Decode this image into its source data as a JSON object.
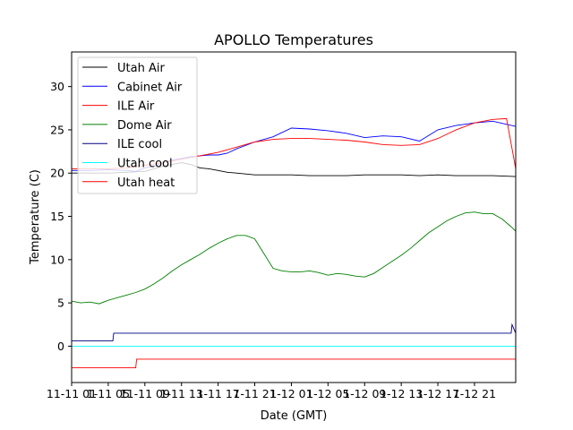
{
  "chart_data": {
    "type": "line",
    "title": "APOLLO Temperatures",
    "xlabel": "Date (GMT)",
    "ylabel": "Temperature (C)",
    "ylim": [
      -4.2,
      34
    ],
    "xlim": [
      0,
      48.5
    ],
    "y_ticks": [
      0,
      5,
      10,
      15,
      20,
      25,
      30
    ],
    "x_ticks": [
      {
        "pos": 0,
        "label": "11-11 01"
      },
      {
        "pos": 4,
        "label": "11-11 05"
      },
      {
        "pos": 8,
        "label": "11-11 09"
      },
      {
        "pos": 12,
        "label": "11-11 13"
      },
      {
        "pos": 16,
        "label": "11-11 17"
      },
      {
        "pos": 20,
        "label": "11-11 21"
      },
      {
        "pos": 24,
        "label": "11-12 01"
      },
      {
        "pos": 28,
        "label": "11-12 05"
      },
      {
        "pos": 32,
        "label": "11-12 09"
      },
      {
        "pos": 36,
        "label": "11-12 13"
      },
      {
        "pos": 40,
        "label": "11-12 17"
      },
      {
        "pos": 44,
        "label": "11-12 21"
      }
    ],
    "x_tick_display": [
      "11-11 01",
      "1-11 05",
      "11-11 09",
      "1-11 13",
      "1-11 17",
      "1-11 21",
      "1-12 01",
      "1-12 05",
      "1-12 09",
      "1-12 13",
      "1-12 17",
      "1-12 21"
    ],
    "legend_position": "upper-left",
    "series": [
      {
        "name": "Utah Air",
        "color": "#000000",
        "x": [
          0,
          2,
          4,
          6,
          8,
          9,
          10,
          11,
          12,
          13,
          14,
          15,
          16,
          17,
          18,
          20,
          22,
          24,
          26,
          28,
          30,
          32,
          34,
          36,
          38,
          40,
          42,
          44,
          46,
          48.5
        ],
        "values": [
          20,
          20,
          20,
          20.1,
          20.2,
          20.5,
          20.8,
          21,
          21.2,
          21,
          20.6,
          20.5,
          20.3,
          20.1,
          20,
          19.8,
          19.8,
          19.8,
          19.7,
          19.7,
          19.7,
          19.8,
          19.8,
          19.8,
          19.7,
          19.8,
          19.7,
          19.7,
          19.7,
          19.6
        ]
      },
      {
        "name": "Cabinet Air",
        "color": "#0000ff",
        "x": [
          0,
          2,
          4,
          6,
          7,
          8,
          9,
          10,
          11,
          12,
          13,
          14,
          15,
          16,
          17,
          18,
          20,
          22,
          24,
          26,
          28,
          30,
          32,
          34,
          36,
          38,
          40,
          42,
          44,
          46,
          48.5
        ],
        "values": [
          20.3,
          20.3,
          20.4,
          20.3,
          20.2,
          20.6,
          20.8,
          21.2,
          21.5,
          21.7,
          21.9,
          22,
          22.1,
          22.1,
          22.3,
          22.8,
          23.6,
          24.2,
          25.2,
          25.1,
          24.9,
          24.6,
          24.1,
          24.3,
          24.2,
          23.7,
          25,
          25.5,
          25.8,
          26,
          25.4
        ]
      },
      {
        "name": "ILE Air",
        "color": "#ff0000",
        "x": [
          0,
          2,
          4,
          6,
          8,
          10,
          12,
          14,
          16,
          18,
          20,
          22,
          24,
          26,
          28,
          30,
          32,
          34,
          36,
          38,
          40,
          42,
          44,
          46,
          47.5,
          48.5
        ],
        "values": [
          20.5,
          20.5,
          20.5,
          20.6,
          20.9,
          21.2,
          21.6,
          22,
          22.4,
          23,
          23.6,
          23.9,
          24,
          24,
          23.9,
          23.8,
          23.6,
          23.3,
          23.2,
          23.3,
          24,
          25,
          25.8,
          26.2,
          26.3,
          20.5
        ]
      },
      {
        "name": "Dome Air",
        "color": "#008000",
        "x": [
          0,
          1,
          2,
          3,
          4,
          5,
          6,
          7,
          8,
          9,
          10,
          11,
          12,
          13,
          14,
          15,
          16,
          17,
          18,
          19,
          20,
          21,
          22,
          23,
          24,
          25,
          26,
          27,
          28,
          29,
          30,
          31,
          32,
          33,
          34,
          35,
          36,
          37,
          38,
          39,
          40,
          41,
          42,
          43,
          44,
          45,
          46,
          47,
          48,
          48.5
        ],
        "values": [
          5.2,
          5,
          5.1,
          4.9,
          5.3,
          5.6,
          5.9,
          6.2,
          6.6,
          7.2,
          7.9,
          8.7,
          9.4,
          10,
          10.6,
          11.3,
          11.9,
          12.4,
          12.8,
          12.8,
          12.4,
          10.7,
          9,
          8.7,
          8.6,
          8.6,
          8.7,
          8.5,
          8.2,
          8.4,
          8.3,
          8.1,
          8,
          8.4,
          9.1,
          9.8,
          10.5,
          11.3,
          12.2,
          13.1,
          13.8,
          14.5,
          15,
          15.4,
          15.5,
          15.3,
          15.3,
          14.7,
          13.8,
          13.3
        ]
      },
      {
        "name": "ILE cool",
        "color": "#000080",
        "x": [
          0,
          4.5,
          4.6,
          48,
          48.1,
          48.5
        ],
        "values": [
          0.6,
          0.6,
          1.5,
          1.5,
          2.5,
          1.5
        ]
      },
      {
        "name": "Utah cool",
        "color": "#00ffff",
        "x": [
          0,
          48.5
        ],
        "values": [
          0,
          0
        ]
      },
      {
        "name": "Utah heat",
        "color": "#ff0000",
        "x": [
          0,
          7,
          7.1,
          48.5
        ],
        "values": [
          -2.5,
          -2.5,
          -1.5,
          -1.5
        ]
      }
    ]
  }
}
